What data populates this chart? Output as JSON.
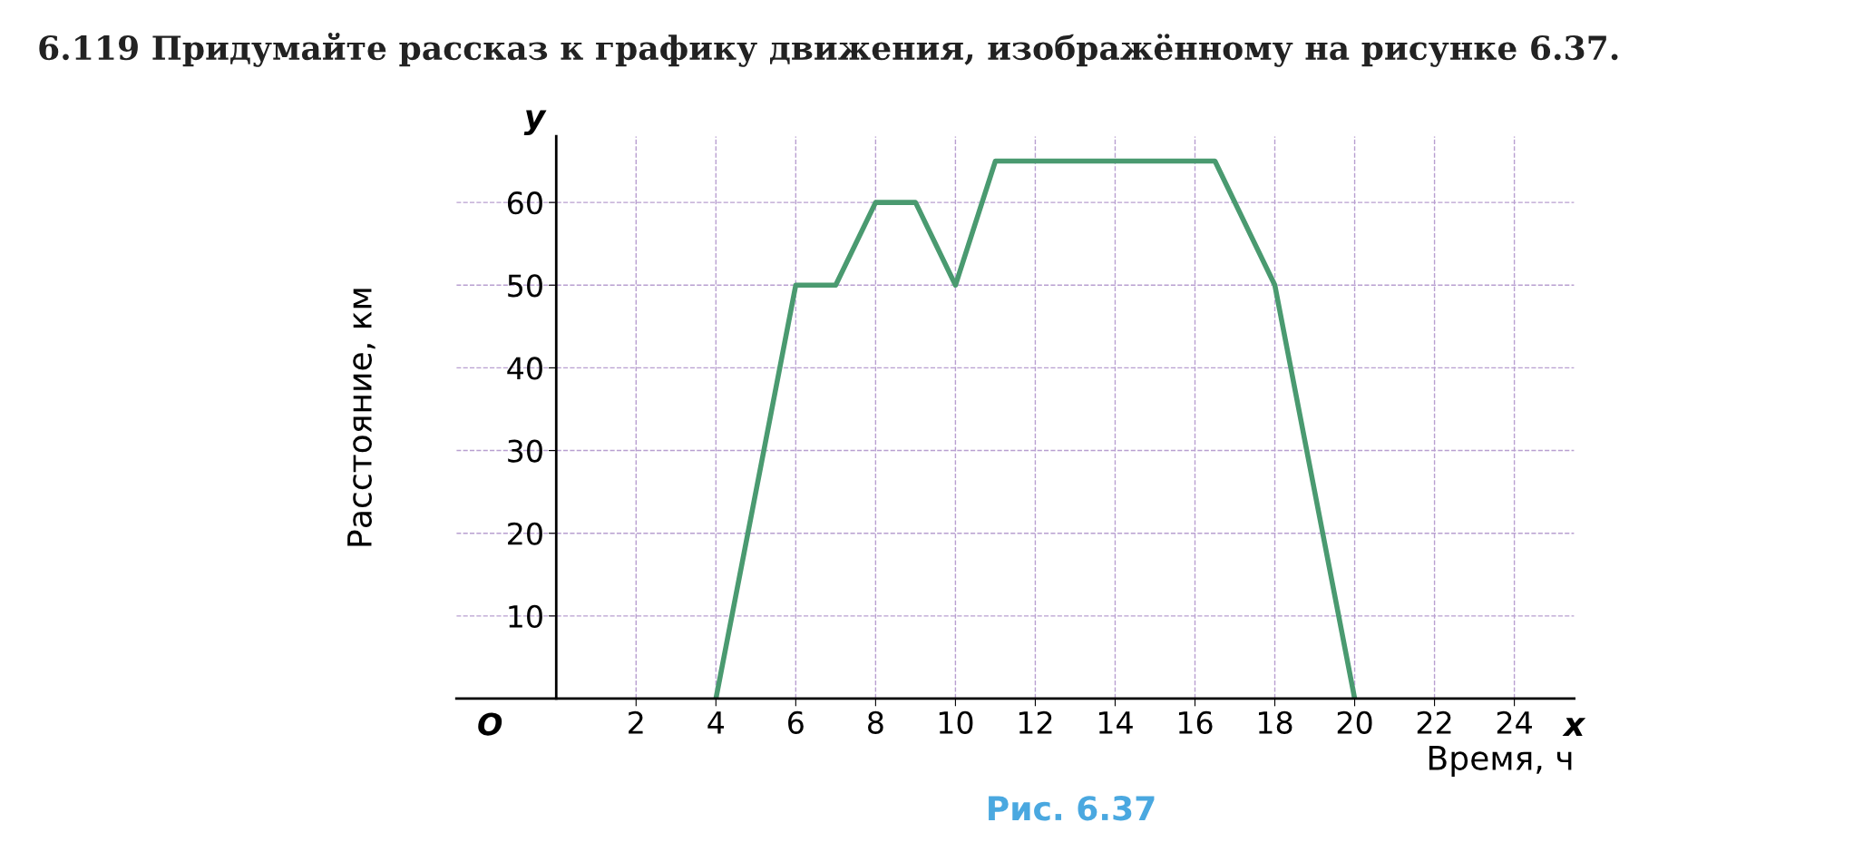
{
  "chart_data": {
    "type": "line",
    "title": "6.119 Придумайте рассказ к графику движения, изображённому на рисунке 6.37.",
    "xlabel": "Время, ч",
    "ylabel": "Расстояние, км",
    "x": [
      4,
      6,
      7,
      8,
      9,
      10,
      11,
      16.5,
      18,
      20
    ],
    "series": [
      {
        "color": "#4a9a70",
        "values": [
          0,
          50,
          50,
          60,
          60,
          50,
          65,
          65,
          50,
          0
        ]
      }
    ],
    "xlim": [
      -2.5,
      25.5
    ],
    "ylim": [
      0,
      68
    ],
    "xticks": [
      2,
      4,
      6,
      8,
      10,
      12,
      14,
      16,
      18,
      20,
      22,
      24
    ],
    "yticks": [
      10,
      20,
      30,
      40,
      50,
      60
    ],
    "grid": true,
    "marker": "none",
    "line_style": "solid",
    "annotations": [
      "O",
      "y",
      "x",
      "Рис. 6.37"
    ]
  }
}
